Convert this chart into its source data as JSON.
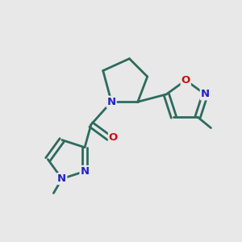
{
  "background_color": "#e8e8e8",
  "bond_color": "#2d6b5e",
  "nitrogen_color": "#2222cc",
  "oxygen_color": "#cc1111",
  "line_width": 2.0,
  "fig_width": 3.0,
  "fig_height": 3.0,
  "dpi": 100,
  "xlim": [
    0,
    10
  ],
  "ylim": [
    0,
    10
  ],
  "fontsize": 9.5
}
